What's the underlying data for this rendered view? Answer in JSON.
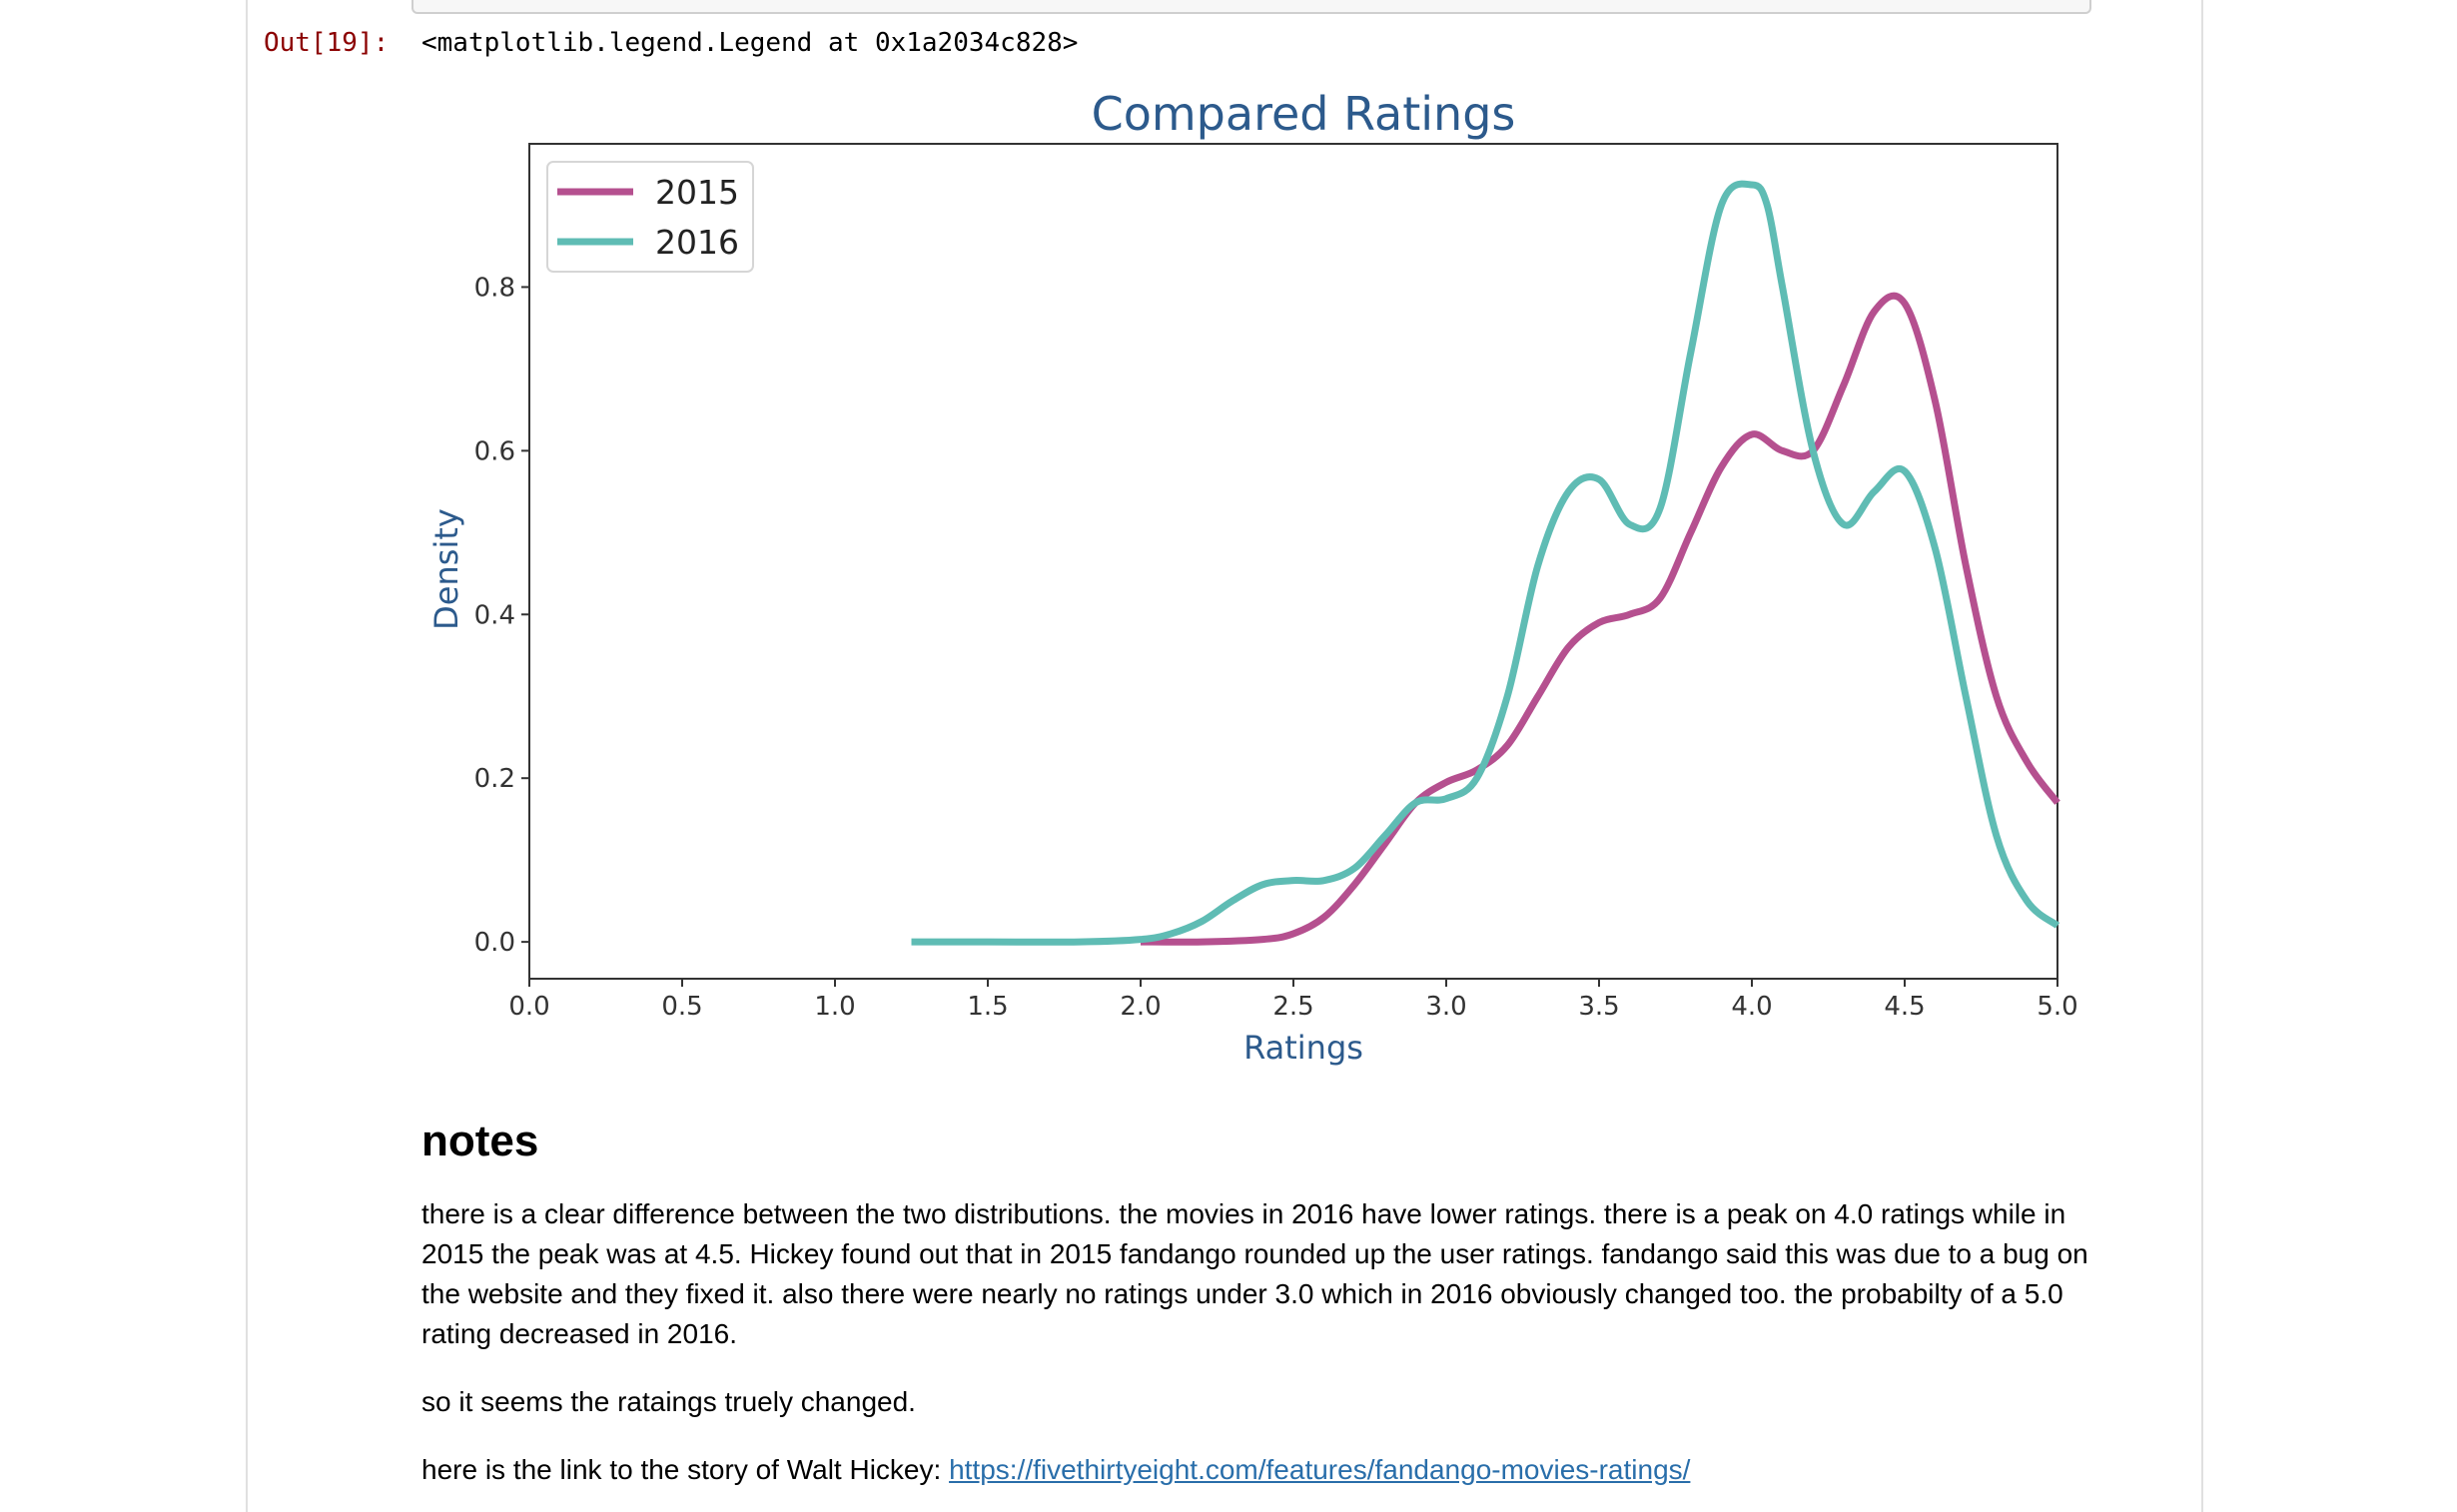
{
  "output": {
    "prompt": "Out[19]:",
    "text": "<matplotlib.legend.Legend at 0x1a2034c828>"
  },
  "chart_data": {
    "type": "line",
    "title": "Compared Ratings",
    "xlabel": "Ratings",
    "ylabel": "Density",
    "xlim": [
      0.0,
      5.0
    ],
    "ylim": [
      -0.045,
      0.975
    ],
    "xticks": [
      "0.0",
      "0.5",
      "1.0",
      "1.5",
      "2.0",
      "2.5",
      "3.0",
      "3.5",
      "4.0",
      "4.5",
      "5.0"
    ],
    "yticks": [
      "0.0",
      "0.2",
      "0.4",
      "0.6",
      "0.8"
    ],
    "legend": "top-left",
    "grid": false,
    "series": [
      {
        "name": "2015",
        "color": "#b5508f",
        "x": [
          2.0,
          2.2,
          2.4,
          2.5,
          2.6,
          2.7,
          2.8,
          2.9,
          3.0,
          3.1,
          3.2,
          3.3,
          3.4,
          3.5,
          3.6,
          3.7,
          3.8,
          3.9,
          4.0,
          4.1,
          4.2,
          4.3,
          4.4,
          4.5,
          4.6,
          4.7,
          4.8,
          4.9,
          5.0
        ],
        "y": [
          0.0,
          0.0,
          0.003,
          0.01,
          0.03,
          0.07,
          0.12,
          0.17,
          0.195,
          0.21,
          0.24,
          0.3,
          0.36,
          0.39,
          0.4,
          0.42,
          0.5,
          0.58,
          0.62,
          0.6,
          0.6,
          0.68,
          0.77,
          0.78,
          0.66,
          0.46,
          0.3,
          0.22,
          0.17
        ]
      },
      {
        "name": "2016",
        "color": "#5fbcb4",
        "x": [
          1.25,
          1.5,
          1.8,
          2.0,
          2.1,
          2.2,
          2.3,
          2.4,
          2.5,
          2.6,
          2.7,
          2.8,
          2.9,
          3.0,
          3.1,
          3.2,
          3.3,
          3.4,
          3.5,
          3.6,
          3.7,
          3.8,
          3.9,
          4.0,
          4.05,
          4.1,
          4.2,
          4.3,
          4.4,
          4.5,
          4.6,
          4.7,
          4.8,
          4.9,
          5.0
        ],
        "y": [
          0.0,
          0.0,
          0.0,
          0.003,
          0.01,
          0.025,
          0.05,
          0.07,
          0.075,
          0.075,
          0.09,
          0.13,
          0.17,
          0.175,
          0.2,
          0.3,
          0.46,
          0.55,
          0.565,
          0.51,
          0.53,
          0.72,
          0.9,
          0.925,
          0.9,
          0.8,
          0.6,
          0.51,
          0.55,
          0.575,
          0.48,
          0.3,
          0.13,
          0.05,
          0.02
        ]
      }
    ]
  },
  "notes": {
    "heading": "notes",
    "paragraph1": "there is a clear difference between the two distributions. the movies in 2016 have lower ratings. there is a peak on 4.0 ratings while in 2015 the peak was at 4.5. Hickey found out that in 2015 fandango rounded up the user ratings. fandango said this was due to a bug on the website and they fixed it. also there were nearly no ratings under 3.0 which in 2016 obviously changed too. the probabilty of a 5.0 rating decreased in 2016.",
    "paragraph2": "so it seems the rataings truely changed.",
    "paragraph3_prefix": "here is the link to the story of Walt Hickey: ",
    "link_text": "https://fivethirtyeight.com/features/fandango-movies-ratings/"
  }
}
